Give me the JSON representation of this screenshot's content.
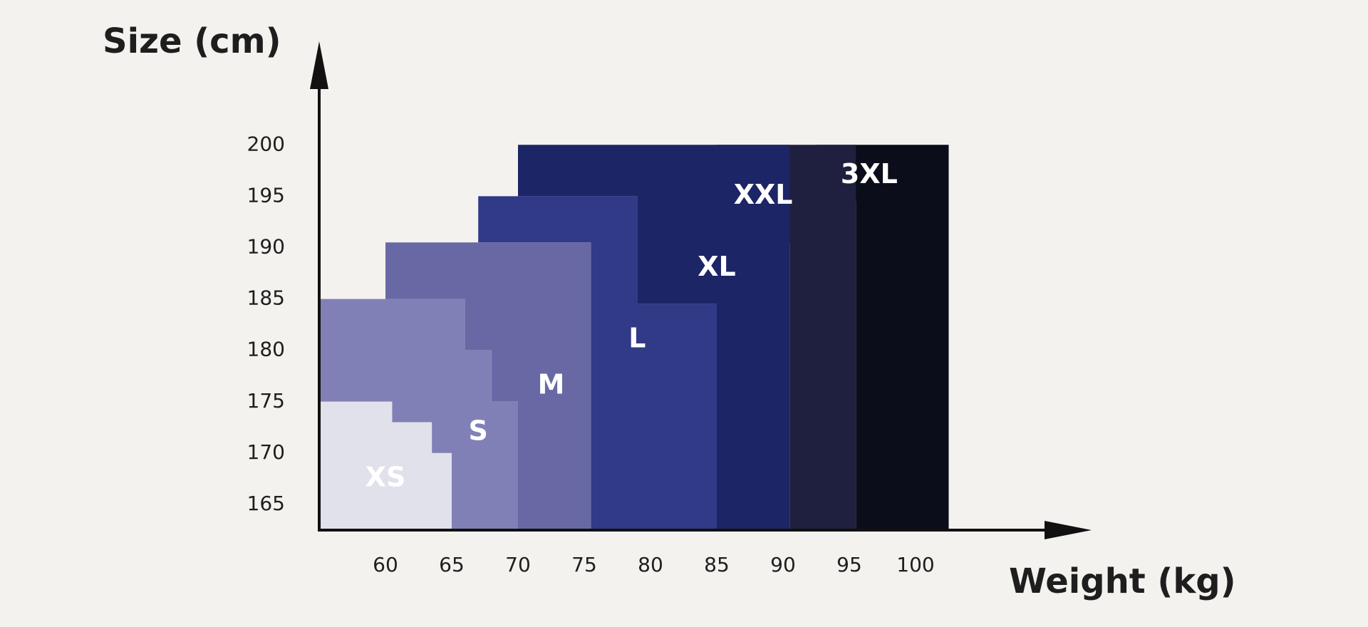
{
  "chart_data": {
    "type": "area",
    "ylabel": "Size (cm)",
    "xlabel": "Weight (kg)",
    "x_ticks": [
      60,
      65,
      70,
      75,
      80,
      85,
      90,
      95,
      100
    ],
    "y_ticks": [
      165,
      170,
      175,
      180,
      185,
      190,
      195,
      200
    ],
    "xlim": [
      55,
      105
    ],
    "ylim": [
      162.5,
      203
    ],
    "grid": false,
    "legend": "none",
    "sizes": [
      {
        "name": "3XL",
        "color": "#0b0d1a",
        "label_at": {
          "weight": 96.5,
          "height": 197
        },
        "outline": [
          [
            92.5,
            200
          ],
          [
            102.5,
            200
          ],
          [
            102.5,
            162.5
          ],
          [
            95.5,
            162.5
          ],
          [
            95.5,
            194.5
          ],
          [
            92.5,
            194.5
          ]
        ]
      },
      {
        "name": "XXL",
        "color": "#1f203f",
        "label_at": {
          "weight": 88.5,
          "height": 195
        },
        "outline": [
          [
            85,
            200
          ],
          [
            95.5,
            200
          ],
          [
            95.5,
            162.5
          ],
          [
            90.5,
            162.5
          ],
          [
            90.5,
            190.5
          ],
          [
            85,
            190.5
          ]
        ]
      },
      {
        "name": "XL",
        "color": "#1c2565",
        "label_at": {
          "weight": 85,
          "height": 188
        },
        "outline": [
          [
            70,
            200
          ],
          [
            90.5,
            200
          ],
          [
            90.5,
            162.5
          ],
          [
            85,
            162.5
          ],
          [
            85,
            184.5
          ],
          [
            79,
            184.5
          ],
          [
            79,
            195
          ],
          [
            70,
            195
          ]
        ]
      },
      {
        "name": "L",
        "color": "#303a87",
        "label_at": {
          "weight": 79,
          "height": 181
        },
        "outline": [
          [
            67,
            195
          ],
          [
            79,
            195
          ],
          [
            79,
            184.5
          ],
          [
            85,
            184.5
          ],
          [
            85,
            162.5
          ],
          [
            75.5,
            162.5
          ],
          [
            75.5,
            190.5
          ],
          [
            67,
            190.5
          ]
        ]
      },
      {
        "name": "M",
        "color": "#6869a4",
        "label_at": {
          "weight": 72.5,
          "height": 176.5
        },
        "outline": [
          [
            60,
            190.5
          ],
          [
            75.5,
            190.5
          ],
          [
            75.5,
            162.5
          ],
          [
            70,
            162.5
          ],
          [
            70,
            175
          ],
          [
            68,
            175
          ],
          [
            68,
            180
          ],
          [
            66,
            180
          ],
          [
            66,
            185
          ],
          [
            60,
            185
          ]
        ]
      },
      {
        "name": "S",
        "color": "#8180b6",
        "label_at": {
          "weight": 67,
          "height": 172
        },
        "outline": [
          [
            55,
            185
          ],
          [
            66,
            185
          ],
          [
            66,
            180
          ],
          [
            68,
            180
          ],
          [
            68,
            175
          ],
          [
            70,
            175
          ],
          [
            70,
            162.5
          ],
          [
            65,
            162.5
          ],
          [
            65,
            170
          ],
          [
            63.5,
            170
          ],
          [
            63.5,
            173
          ],
          [
            60.5,
            173
          ],
          [
            60.5,
            175
          ],
          [
            55,
            175
          ]
        ]
      },
      {
        "name": "XS",
        "color": "#e1e1ec",
        "label_at": {
          "weight": 60,
          "height": 167.5
        },
        "outline": [
          [
            55,
            175
          ],
          [
            60.5,
            175
          ],
          [
            60.5,
            173
          ],
          [
            63.5,
            173
          ],
          [
            63.5,
            170
          ],
          [
            65,
            170
          ],
          [
            65,
            162.5
          ],
          [
            55,
            162.5
          ]
        ]
      }
    ]
  }
}
